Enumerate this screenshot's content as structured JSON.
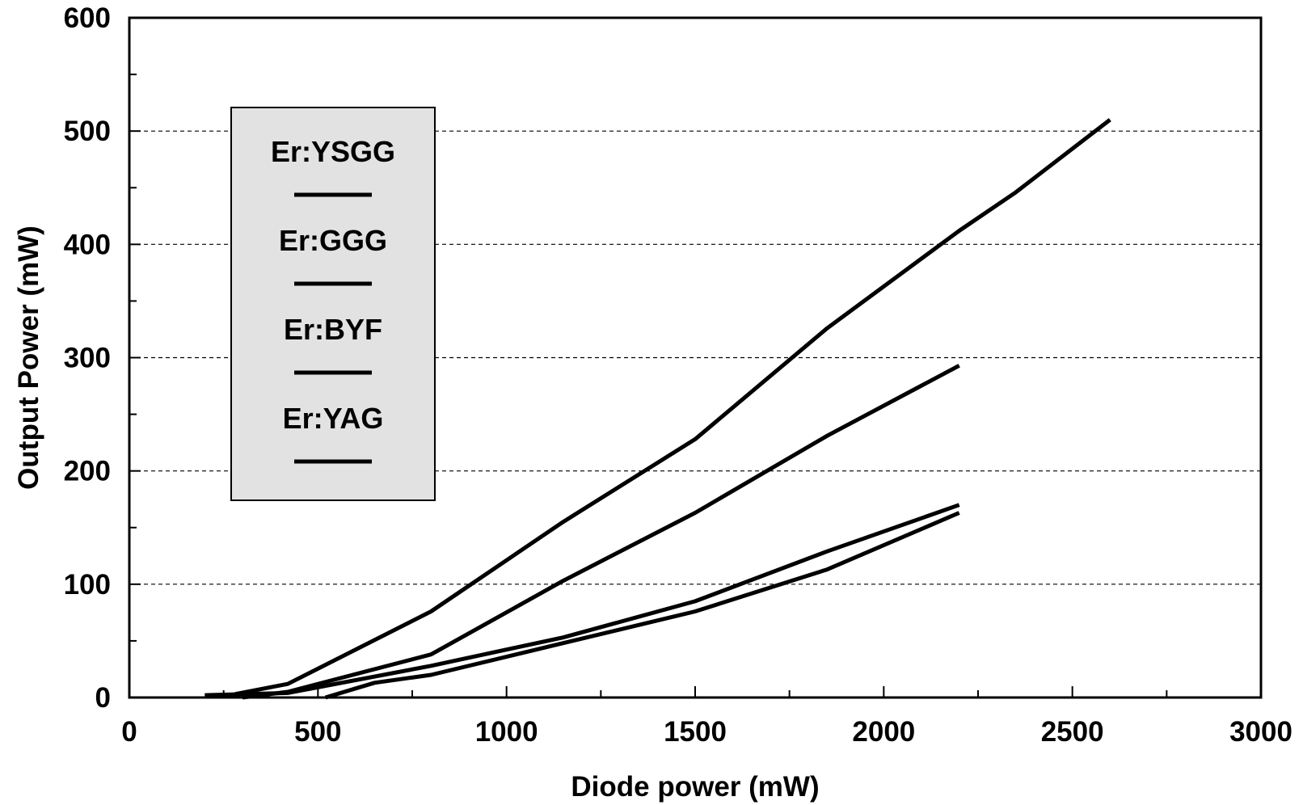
{
  "chart_data": {
    "type": "line",
    "title": "",
    "xlabel": "Diode power (mW)",
    "ylabel": "Output Power (mW)",
    "xlim": [
      0,
      3000
    ],
    "ylim": [
      0,
      600
    ],
    "x_ticks": [
      0,
      500,
      1000,
      1500,
      2000,
      2500,
      3000
    ],
    "x_tick_labels": [
      "0",
      "500",
      "1000",
      "1500",
      "2000",
      "2500",
      "3000"
    ],
    "y_ticks": [
      0,
      100,
      200,
      300,
      400,
      500,
      600
    ],
    "y_tick_labels": [
      "0",
      "100",
      "200",
      "300",
      "400",
      "500",
      "600"
    ],
    "grid": "horizontal dashed",
    "legend_position": "top-left",
    "line_color": "#000000",
    "series": [
      {
        "name": "Er:YSGG",
        "x": [
          280,
          420,
          800,
          1150,
          1500,
          1850,
          2200,
          2350,
          2600
        ],
        "y": [
          3,
          12,
          76,
          155,
          228,
          326,
          412,
          446,
          510
        ]
      },
      {
        "name": "Er:GGG",
        "x": [
          300,
          420,
          800,
          1150,
          1500,
          1850,
          2200
        ],
        "y": [
          0,
          5,
          38,
          103,
          163,
          231,
          293
        ]
      },
      {
        "name": "Er:BYF",
        "x": [
          200,
          420,
          800,
          1150,
          1500,
          1850,
          2200
        ],
        "y": [
          2,
          4,
          28,
          53,
          85,
          129,
          170
        ]
      },
      {
        "name": "Er:YAG",
        "x": [
          520,
          650,
          800,
          1150,
          1500,
          1850,
          2200
        ],
        "y": [
          0,
          13,
          20,
          48,
          76,
          113,
          163
        ]
      }
    ]
  }
}
